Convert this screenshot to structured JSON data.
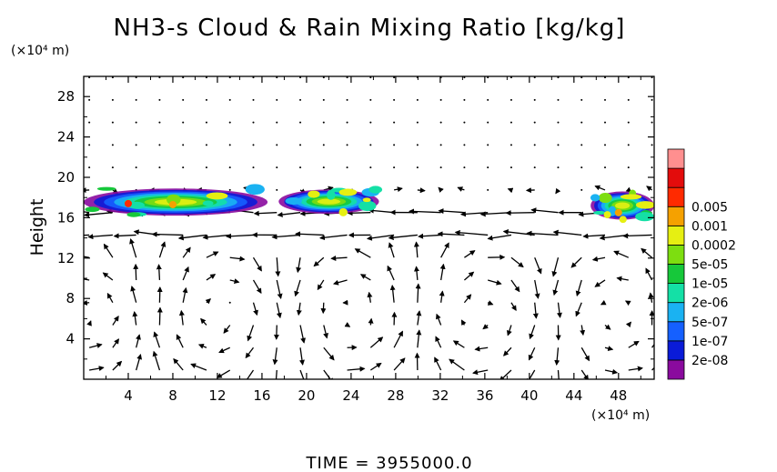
{
  "chart_data": {
    "type": "heatmap",
    "title": "NH3-s Cloud & Rain Mixing Ratio [kg/kg]",
    "ylabel": "Height",
    "y_unit": "(×10⁴ m)",
    "x_unit": "(×10⁴ m)",
    "xlim": [
      0,
      51.2
    ],
    "ylim": [
      0,
      30
    ],
    "x_ticks": [
      "4",
      "8",
      "12",
      "16",
      "20",
      "24",
      "28",
      "32",
      "36",
      "40",
      "44",
      "48"
    ],
    "x_tick_values": [
      4,
      8,
      12,
      16,
      20,
      24,
      28,
      32,
      36,
      40,
      44,
      48
    ],
    "y_ticks": [
      "4",
      "8",
      "12",
      "16",
      "20",
      "24",
      "28"
    ],
    "y_tick_values": [
      4,
      8,
      12,
      16,
      20,
      24,
      28
    ],
    "colorbar": {
      "labels": [
        "2e-08",
        "1e-07",
        "5e-07",
        "2e-06",
        "1e-05",
        "5e-05",
        "0.0002",
        "0.001",
        "0.005"
      ],
      "colors": [
        "#8a0a9e",
        "#0a1bd8",
        "#1560ff",
        "#1ab2f2",
        "#14e0a6",
        "#16c83a",
        "#7dde10",
        "#e6ef12",
        "#f5a100",
        "#ff2a00",
        "#e30c0c",
        "#ff8f8f"
      ]
    },
    "cloud_regions": [
      {
        "name": "left-layer",
        "x": [
          0,
          16.5
        ],
        "y": [
          16.2,
          18.9
        ]
      },
      {
        "name": "middle-layer",
        "x": [
          17.5,
          26.5
        ],
        "y": [
          16.4,
          18.8
        ]
      },
      {
        "name": "right-layer",
        "x": [
          45.5,
          51.2
        ],
        "y": [
          15.8,
          18.6
        ]
      }
    ],
    "wind_field": "vector arrows over whole domain; strong leftward jet at height ~15-16"
  },
  "time_label": "TIME = 3955000.0"
}
